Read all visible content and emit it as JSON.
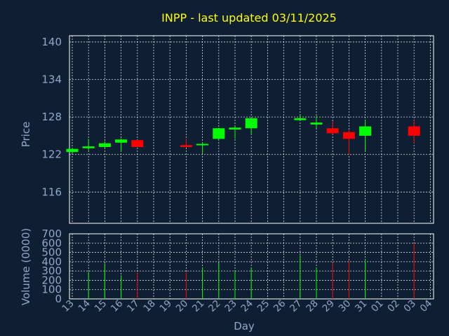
{
  "colors": {
    "background": "#0f1f33",
    "title": "#ffff00",
    "text": "#8fa8c8",
    "grid": "#ffffff",
    "frame": "#ffffff",
    "up": "#00ff00",
    "down": "#ff0000",
    "volume_up": "#00ff00",
    "volume_down": "#ff0000"
  },
  "chart_data": {
    "type": "candlestick",
    "title": "INPP - last updated 03/11/2025",
    "ylabel": "Price",
    "volume_ylabel": "Volume (0000)",
    "xlabel": "Day",
    "ylim": [
      111,
      141
    ],
    "volume_ylim": [
      0,
      700
    ],
    "yticks": [
      140,
      134,
      128,
      122,
      116
    ],
    "volume_yticks": [
      700,
      600,
      500,
      400,
      300,
      200,
      100,
      0
    ],
    "grid": true,
    "x_labels": [
      "13",
      "14",
      "15",
      "16",
      "17",
      "18",
      "19",
      "20",
      "21",
      "22",
      "23",
      "24",
      "25",
      "26",
      "27",
      "28",
      "29",
      "30",
      "31",
      "01",
      "02",
      "03",
      "04"
    ],
    "candles": [
      {
        "day": "13",
        "open": 122.4,
        "close": 122.9,
        "high": 123.1,
        "low": 122.2,
        "volume": 0
      },
      {
        "day": "14",
        "open": 123.0,
        "close": 123.3,
        "high": 124.5,
        "low": 122.7,
        "volume": 290
      },
      {
        "day": "15",
        "open": 123.2,
        "close": 123.8,
        "high": 124.1,
        "low": 123.0,
        "volume": 380
      },
      {
        "day": "16",
        "open": 123.9,
        "close": 124.4,
        "high": 124.6,
        "low": 122.5,
        "volume": 255
      },
      {
        "day": "17",
        "open": 124.3,
        "close": 123.2,
        "high": 124.3,
        "low": 123.2,
        "volume": 285
      },
      {
        "day": "20",
        "open": 123.5,
        "close": 123.2,
        "high": 124.5,
        "low": 123.1,
        "volume": 290
      },
      {
        "day": "21",
        "open": 123.5,
        "close": 123.7,
        "high": 123.9,
        "low": 122.2,
        "volume": 340
      },
      {
        "day": "22",
        "open": 124.5,
        "close": 126.2,
        "high": 126.3,
        "low": 124.4,
        "volume": 385
      },
      {
        "day": "23",
        "open": 126.0,
        "close": 126.3,
        "high": 126.5,
        "low": 124.5,
        "volume": 300
      },
      {
        "day": "24",
        "open": 126.2,
        "close": 127.8,
        "high": 127.8,
        "low": 125.2,
        "volume": 335
      },
      {
        "day": "27",
        "open": 127.5,
        "close": 127.8,
        "high": 128.4,
        "low": 127.4,
        "volume": 470
      },
      {
        "day": "28",
        "open": 126.8,
        "close": 127.1,
        "high": 128.2,
        "low": 126.2,
        "volume": 340
      },
      {
        "day": "29",
        "open": 126.2,
        "close": 125.4,
        "high": 127.3,
        "low": 125.2,
        "volume": 390
      },
      {
        "day": "30",
        "open": 125.6,
        "close": 124.5,
        "high": 125.9,
        "low": 122.0,
        "volume": 410
      },
      {
        "day": "31",
        "open": 125.0,
        "close": 126.5,
        "high": 127.5,
        "low": 122.6,
        "volume": 420
      },
      {
        "day": "03",
        "open": 126.5,
        "close": 125.0,
        "high": 127.5,
        "low": 123.8,
        "volume": 600
      }
    ]
  }
}
